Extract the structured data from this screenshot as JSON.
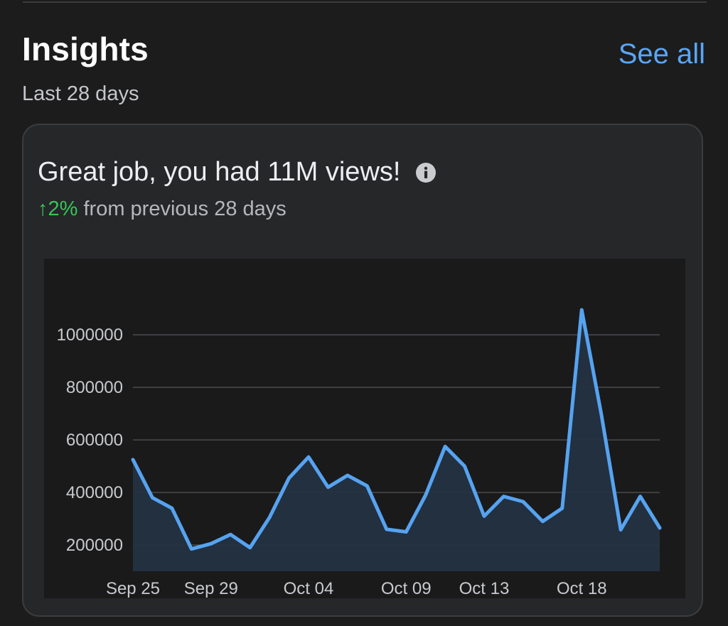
{
  "section": {
    "title": "Insights",
    "subtitle": "Last 28 days",
    "see_all_label": "See all"
  },
  "card": {
    "headline": "Great job, you had 11M views!",
    "info_icon": "info-icon",
    "trend_arrow": "↑",
    "trend_percent": "2%",
    "comparison_text": " from previous 28 days"
  },
  "colors": {
    "accent": "#59a6f5",
    "line": "#56a3f0",
    "trend_up": "#34c759",
    "fill": "#243242"
  },
  "chart_data": {
    "type": "area",
    "x": [
      "Sep 25",
      "Sep 26",
      "Sep 27",
      "Sep 28",
      "Sep 29",
      "Sep 30",
      "Oct 01",
      "Oct 02",
      "Oct 03",
      "Oct 04",
      "Oct 05",
      "Oct 06",
      "Oct 07",
      "Oct 08",
      "Oct 09",
      "Oct 10",
      "Oct 11",
      "Oct 12",
      "Oct 13",
      "Oct 14",
      "Oct 15",
      "Oct 16",
      "Oct 17",
      "Oct 18",
      "Oct 19",
      "Oct 20",
      "Oct 21",
      "Oct 22"
    ],
    "series": [
      {
        "values": [
          525000,
          380000,
          340000,
          185000,
          205000,
          240000,
          190000,
          305000,
          455000,
          535000,
          420000,
          465000,
          425000,
          260000,
          250000,
          390000,
          575000,
          500000,
          310000,
          385000,
          365000,
          290000,
          340000,
          1095000,
          700000,
          258000,
          385000,
          265000
        ]
      }
    ],
    "x_tick_labels": [
      "Sep 25",
      "Sep 29",
      "Oct 04",
      "Oct 09",
      "Oct 13",
      "Oct 18"
    ],
    "y_ticks": [
      200000,
      400000,
      600000,
      800000,
      1000000
    ],
    "y_tick_labels": [
      "200000",
      "400000",
      "600000",
      "800000",
      "1000000"
    ],
    "ylim": [
      100000,
      1290000
    ],
    "grid": true,
    "legend": "none"
  }
}
